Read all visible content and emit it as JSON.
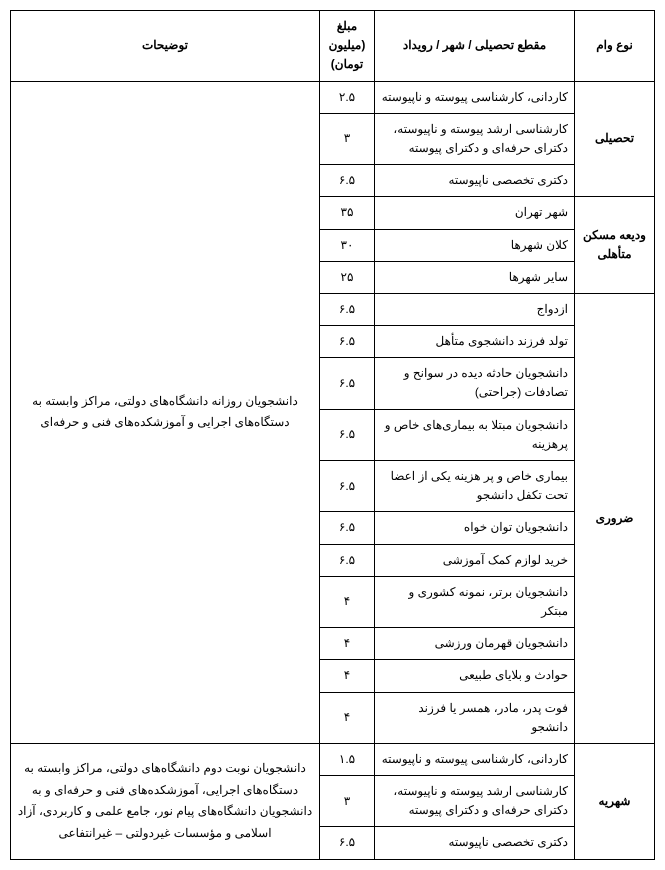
{
  "headers": {
    "loan_type": "نوع وام",
    "category": "مقطع تحصیلی / شهر / رویداد",
    "amount": "مبلغ (میلیون تومان)",
    "notes": "توضیحات"
  },
  "groups": [
    {
      "name": "tahsili",
      "label": "تحصیلی",
      "items": [
        {
          "category": "کاردانی، کارشناسی پیوسته و ناپیوسته",
          "amount": "۲.۵"
        },
        {
          "category": "کارشناسی ارشد پیوسته و ناپیوسته، دکترای حرفه‌ای و دکترای پیوسته",
          "amount": "۳"
        },
        {
          "category": "دکتری تخصصی ناپیوسته",
          "amount": "۶.۵"
        }
      ]
    },
    {
      "name": "maskan",
      "label": "ودیعه مسکن متأهلی",
      "items": [
        {
          "category": "شهر تهران",
          "amount": "۳۵"
        },
        {
          "category": "کلان شهرها",
          "amount": "۳۰"
        },
        {
          "category": "سایر شهرها",
          "amount": "۲۵"
        }
      ]
    },
    {
      "name": "zaruri",
      "label": "ضروری",
      "items": [
        {
          "category": "ازدواج",
          "amount": "۶.۵"
        },
        {
          "category": "تولد فرزند دانشجوی متأهل",
          "amount": "۶.۵"
        },
        {
          "category": "دانشجویان حادثه دیده در سوانح و تصادفات (جراحتی)",
          "amount": "۶.۵"
        },
        {
          "category": "دانشجویان مبتلا به بیماری‌های خاص و پرهزینه",
          "amount": "۶.۵"
        },
        {
          "category": "بیماری خاص و پر هزینه یکی از اعضا تحت تکفل دانشجو",
          "amount": "۶.۵"
        },
        {
          "category": "دانشجویان توان خواه",
          "amount": "۶.۵"
        },
        {
          "category": "خرید لوازم کمک آموزشی",
          "amount": "۶.۵"
        },
        {
          "category": "دانشجویان برتر، نمونه کشوری و مبتکر",
          "amount": "۴"
        },
        {
          "category": "دانشجویان قهرمان ورزشی",
          "amount": "۴"
        },
        {
          "category": "حوادث و بلایای طبیعی",
          "amount": "۴"
        },
        {
          "category": "فوت پدر، مادر، همسر یا فرزند دانشجو",
          "amount": "۴"
        }
      ]
    },
    {
      "name": "shahrie",
      "label": "شهریه",
      "items": [
        {
          "category": "کاردانی، کارشناسی پیوسته و ناپیوسته",
          "amount": "۱.۵"
        },
        {
          "category": "کارشناسی ارشد پیوسته و ناپیوسته، دکترای حرفه‌ای و دکترای پیوسته",
          "amount": "۳"
        },
        {
          "category": "دکتری تخصصی ناپیوسته",
          "amount": "۶.۵"
        }
      ]
    }
  ],
  "notes": {
    "block1": "دانشجویان روزانه دانشگاه‌های دولتی، مراکز وابسته به دستگاه‌های اجرایی و آموزشکده‌های فنی و حرفه‌ای",
    "block2": "دانشجویان نوبت دوم دانشگاه‌های دولتی، مراکز وابسته به دستگاه‌های اجرایی، آموزشکده‌های فنی و حرفه‌ای و به دانشجویان دانشگاه‌های پیام نور، جامع علمی و کاربردی، آزاد اسلامی و مؤسسات غیردولتی – غیرانتفاعی"
  }
}
